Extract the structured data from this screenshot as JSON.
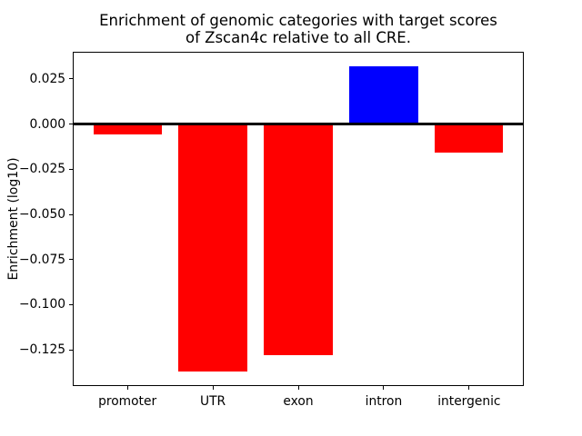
{
  "figure": {
    "background": "#ffffff",
    "text_color": "#000000"
  },
  "chart_data": {
    "type": "bar",
    "title": "Enrichment of genomic categories with target scores\nof Zscan4c relative to all CRE.",
    "ylabel": "Enrichment (log10)",
    "xlabel": "",
    "categories": [
      "promoter",
      "UTR",
      "exon",
      "intron",
      "intergenic"
    ],
    "values": [
      -0.006,
      -0.137,
      -0.128,
      0.032,
      -0.016
    ],
    "bar_colors": [
      "#ff0000",
      "#ff0000",
      "#ff0000",
      "#0000ff",
      "#ff0000"
    ],
    "positive_color": "#0000ff",
    "negative_color": "#ff0000",
    "bar_width": 0.8,
    "xlim": [
      -0.64,
      4.64
    ],
    "ylim": [
      -0.145,
      0.04
    ],
    "yticks": {
      "values": [
        0.025,
        0.0,
        -0.025,
        -0.05,
        -0.075,
        -0.1,
        -0.125
      ],
      "labels": [
        "0.025",
        "0.000",
        "−0.025",
        "−0.050",
        "−0.075",
        "−0.100",
        "−0.125"
      ]
    },
    "zero_line": true,
    "grid": false,
    "legend": null
  }
}
